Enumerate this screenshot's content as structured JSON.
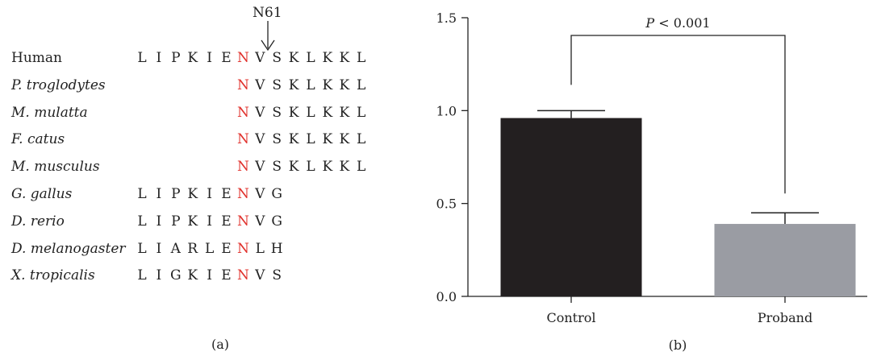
{
  "panel_a": {
    "label": "(a)",
    "marker": {
      "label": "N61",
      "column_index": 6
    },
    "highlight_color": "#e0302b",
    "rows": [
      {
        "species": "Human",
        "italic": false,
        "start": 0,
        "residues": [
          "L",
          "I",
          "P",
          "K",
          "I",
          "E",
          "N",
          "V",
          "S",
          "K",
          "L",
          "K",
          "K",
          "L"
        ]
      },
      {
        "species": "P. troglodytes",
        "italic": true,
        "start": 6,
        "residues": [
          "N",
          "V",
          "S",
          "K",
          "L",
          "K",
          "K",
          "L"
        ]
      },
      {
        "species": "M. mulatta",
        "italic": true,
        "start": 6,
        "residues": [
          "N",
          "V",
          "S",
          "K",
          "L",
          "K",
          "K",
          "L"
        ]
      },
      {
        "species": "F. catus",
        "italic": true,
        "start": 6,
        "residues": [
          "N",
          "V",
          "S",
          "K",
          "L",
          "K",
          "K",
          "L"
        ]
      },
      {
        "species": "M. musculus",
        "italic": true,
        "start": 6,
        "residues": [
          "N",
          "V",
          "S",
          "K",
          "L",
          "K",
          "K",
          "L"
        ]
      },
      {
        "species": "G. gallus",
        "italic": true,
        "start": 0,
        "residues": [
          "L",
          "I",
          "P",
          "K",
          "I",
          "E",
          "N",
          "V",
          "G"
        ]
      },
      {
        "species": "D. rerio",
        "italic": true,
        "start": 0,
        "residues": [
          "L",
          "I",
          "P",
          "K",
          "I",
          "E",
          "N",
          "V",
          "G"
        ]
      },
      {
        "species": "D. melanogaster",
        "italic": true,
        "start": 0,
        "residues": [
          "L",
          "I",
          "A",
          "R",
          "L",
          "E",
          "N",
          "L",
          "H"
        ]
      },
      {
        "species": "X. tropicalis",
        "italic": true,
        "start": 0,
        "residues": [
          "L",
          "I",
          "G",
          "K",
          "I",
          "E",
          "N",
          "V",
          "S"
        ]
      }
    ]
  },
  "chart_data": {
    "type": "bar",
    "label": "(b)",
    "categories": [
      "Control",
      "Proband"
    ],
    "values": [
      0.96,
      0.39
    ],
    "errors": [
      0.04,
      0.06
    ],
    "colors": [
      "#231f20",
      "#9a9ca3"
    ],
    "ylim": [
      0,
      1.5
    ],
    "yticks": [
      "0.0",
      "0.5",
      "1.0",
      "1.5"
    ],
    "annotation": "P < 0.001",
    "xlabel": "",
    "ylabel": ""
  }
}
